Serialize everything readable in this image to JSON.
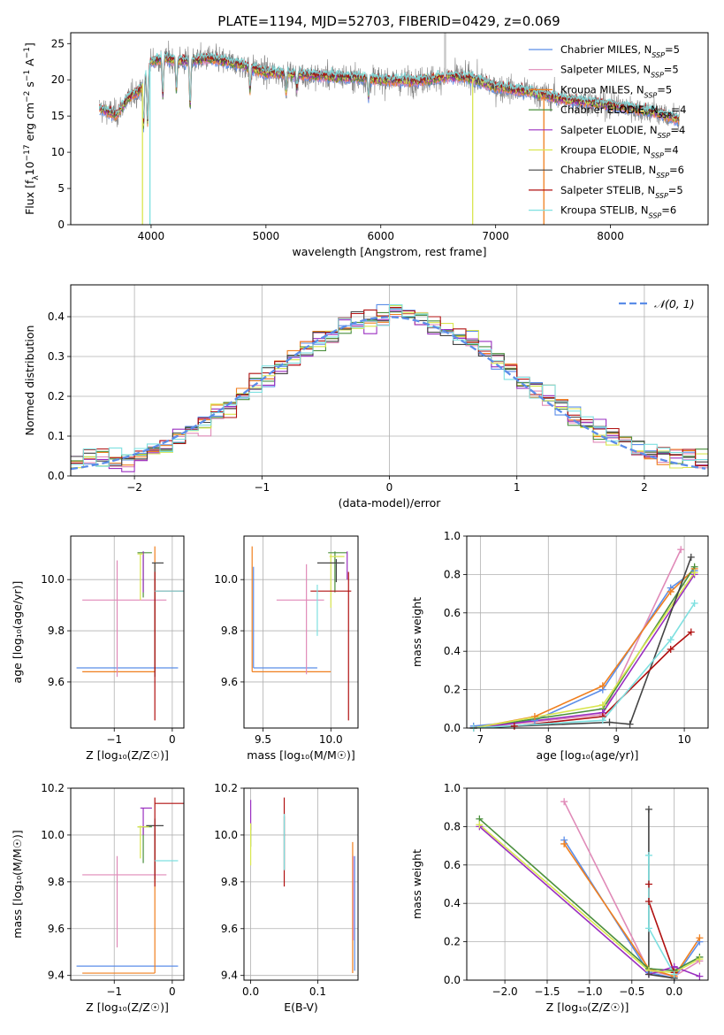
{
  "figure_title": "PLATE=1194, MJD=52703, FIBERID=0429, z=0.069",
  "models": [
    {
      "label": "Chabrier MILES, N",
      "n": "5",
      "color": "#5b8de8"
    },
    {
      "label": "Salpeter MILES, N",
      "n": "5",
      "color": "#e08ab8"
    },
    {
      "label": "Kroupa MILES, N",
      "n": "5",
      "color": "#f07f1e"
    },
    {
      "label": "Chabrier ELODIE, N",
      "n": "4",
      "color": "#4a8f3c"
    },
    {
      "label": "Salpeter ELODIE, N",
      "n": "4",
      "color": "#9a2fc0"
    },
    {
      "label": "Kroupa ELODIE, N",
      "n": "4",
      "color": "#d9e64f"
    },
    {
      "label": "Chabrier STELIB, N",
      "n": "6",
      "color": "#444444"
    },
    {
      "label": "Salpeter STELIB, N",
      "n": "5",
      "color": "#b01010"
    },
    {
      "label": "Kroupa STELIB, N",
      "n": "6",
      "color": "#7ee0e0"
    }
  ],
  "legend_subscript": "SSP",
  "chart_data": [
    {
      "id": "spectrum",
      "type": "line",
      "xlabel": "wavelength [Angstrom, rest frame]",
      "ylabel_parts": [
        "Flux [f",
        "λ",
        "10",
        "−17",
        " erg cm",
        "−2",
        " s",
        "−1",
        " A",
        "−1",
        "]"
      ],
      "xlim": [
        3300,
        8850
      ],
      "ylim": [
        0,
        26.5
      ],
      "xticks": [
        4000,
        5000,
        6000,
        7000,
        8000
      ],
      "yticks": [
        0,
        5,
        10,
        15,
        20,
        25
      ],
      "data_series": {
        "name": "data",
        "color": "#808080"
      },
      "continuum": {
        "x": [
          3550,
          3700,
          3800,
          3900,
          4000,
          4100,
          4300,
          4500,
          4800,
          5000,
          5200,
          5500,
          5800,
          6000,
          6300,
          6600,
          6800,
          7000,
          7300,
          7600,
          8000,
          8400,
          8600
        ],
        "y": [
          16.0,
          15.2,
          17.5,
          18.5,
          22.5,
          23.0,
          22.5,
          23.0,
          22.0,
          21.0,
          20.8,
          20.5,
          20.3,
          20.0,
          19.8,
          20.5,
          20.2,
          19.0,
          18.3,
          17.3,
          16.5,
          15.5,
          14.5
        ]
      },
      "absorption_features": [
        {
          "x": 3934,
          "depth": 6
        },
        {
          "x": 3969,
          "depth": 7
        },
        {
          "x": 4102,
          "depth": 5
        },
        {
          "x": 4220,
          "depth": 4
        },
        {
          "x": 4340,
          "depth": 6
        },
        {
          "x": 4861,
          "depth": 3
        },
        {
          "x": 5175,
          "depth": 2.5
        },
        {
          "x": 5270,
          "depth": 2
        },
        {
          "x": 5893,
          "depth": 2.5
        }
      ],
      "model_spikes": [
        {
          "x": 3925,
          "to": 0,
          "color": "#d9e64f"
        },
        {
          "x": 3990,
          "to": 0,
          "color": "#7ee0e0"
        },
        {
          "x": 6800,
          "to": 0,
          "color": "#d9e64f"
        },
        {
          "x": 7420,
          "to": 0,
          "color": "#f07f1e"
        }
      ],
      "data_spike": {
        "x": 6560,
        "to": 26.5,
        "color": "#c8c8c8"
      }
    },
    {
      "id": "residuals",
      "type": "histogram",
      "xlabel": "(data-model)/error",
      "ylabel": "Normed distribution",
      "xlim": [
        -2.5,
        2.5
      ],
      "ylim": [
        0,
        0.48
      ],
      "xticks": [
        -2,
        -1,
        0,
        1,
        2
      ],
      "xtick_labels": [
        "−2",
        "−1",
        "0",
        "1",
        "2"
      ],
      "yticks": [
        0.0,
        0.1,
        0.2,
        0.3,
        0.4
      ],
      "ytick_labels": [
        "0.0",
        "0.1",
        "0.2",
        "0.3",
        "0.4"
      ],
      "bin_width": 0.1,
      "gaussian_label": "𝒩(0, 1)",
      "gaussian_color": "#5b8de8"
    },
    {
      "id": "age-vs-Z",
      "type": "errorbar",
      "xlabel": "Z [log₁₀(Z/Z☉)]",
      "ylabel": "age  [log₁₀(age/yr)]",
      "xlim": [
        -1.75,
        0.2
      ],
      "ylim": [
        9.42,
        10.17
      ],
      "xticks": [
        -1,
        0
      ],
      "xtick_labels": [
        "−1",
        "0"
      ],
      "yticks": [
        9.6,
        9.8,
        10.0
      ],
      "ytick_labels": [
        "9.6",
        "9.8",
        "10.0"
      ],
      "points": [
        {
          "m": 0,
          "x": -0.3,
          "y": 9.655,
          "xl": -1.65,
          "xh": 0.1,
          "yl": 9.655,
          "yh": 9.655
        },
        {
          "m": 2,
          "x": -0.3,
          "y": 9.64,
          "xl": -1.55,
          "xh": -0.3,
          "yl": 9.64,
          "yh": 10.13
        },
        {
          "m": 1,
          "x": -0.95,
          "y": 9.92,
          "xl": -1.55,
          "xh": -0.1,
          "yl": 9.62,
          "yh": 10.075
        },
        {
          "m": 3,
          "x": -0.5,
          "y": 10.105,
          "xl": -0.6,
          "xh": -0.35,
          "yl": 9.93,
          "yh": 10.11
        },
        {
          "m": 4,
          "x": -0.5,
          "y": 10.11,
          "xl": -0.5,
          "xh": -0.5,
          "yl": 9.95,
          "yh": 10.11
        },
        {
          "m": 5,
          "x": -0.55,
          "y": 10.1,
          "xl": -0.6,
          "xh": -0.5,
          "yl": 9.92,
          "yh": 10.1
        },
        {
          "m": 6,
          "x": -0.3,
          "y": 10.065,
          "xl": -0.35,
          "xh": -0.15,
          "yl": 9.62,
          "yh": 10.065
        },
        {
          "m": 7,
          "x": -0.3,
          "y": 9.955,
          "xl": -0.3,
          "xh": 0.2,
          "yl": 9.45,
          "yh": 10.03
        },
        {
          "m": 8,
          "x": -0.25,
          "y": 9.955,
          "xl": -0.3,
          "xh": 0.2,
          "yl": 9.955,
          "yh": 9.955
        }
      ]
    },
    {
      "id": "age-vs-mass",
      "type": "errorbar",
      "xlabel": "mass [log₁₀(M/M☉)]",
      "ylabel": "",
      "xlim": [
        9.36,
        10.2
      ],
      "ylim": [
        9.42,
        10.17
      ],
      "xticks": [
        9.5,
        10.0
      ],
      "xtick_labels": [
        "9.5",
        "10.0"
      ],
      "yticks": [
        9.6,
        9.8,
        10.0
      ],
      "ytick_labels": [
        "9.6",
        "9.8",
        "10.0"
      ],
      "points": [
        {
          "m": 0,
          "x": 9.43,
          "y": 9.655,
          "xl": 9.43,
          "xh": 9.9,
          "yl": 9.655,
          "yh": 10.05
        },
        {
          "m": 2,
          "x": 9.42,
          "y": 9.64,
          "xl": 9.42,
          "xh": 10.0,
          "yl": 9.64,
          "yh": 10.13
        },
        {
          "m": 1,
          "x": 9.82,
          "y": 9.92,
          "xl": 9.6,
          "xh": 9.95,
          "yl": 9.63,
          "yh": 10.06
        },
        {
          "m": 3,
          "x": 10.03,
          "y": 10.105,
          "xl": 9.98,
          "xh": 10.12,
          "yl": 9.95,
          "yh": 10.11
        },
        {
          "m": 4,
          "x": 10.12,
          "y": 10.1,
          "xl": 10.12,
          "xh": 10.12,
          "yl": 10.0,
          "yh": 10.11
        },
        {
          "m": 5,
          "x": 10.0,
          "y": 10.09,
          "xl": 9.99,
          "xh": 10.1,
          "yl": 9.89,
          "yh": 10.1
        },
        {
          "m": 6,
          "x": 10.04,
          "y": 10.065,
          "xl": 9.9,
          "xh": 10.1,
          "yl": 9.99,
          "yh": 10.08
        },
        {
          "m": 7,
          "x": 10.13,
          "y": 9.955,
          "xl": 9.85,
          "xh": 10.15,
          "yl": 9.45,
          "yh": 10.03
        },
        {
          "m": 8,
          "x": 9.9,
          "y": 9.955,
          "xl": 9.9,
          "xh": 9.9,
          "yl": 9.78,
          "yh": 9.98
        }
      ]
    },
    {
      "id": "weight-vs-age",
      "type": "line",
      "xlabel": "age  [log₁₀(age/yr)]",
      "ylabel": "mass weight",
      "xlim": [
        6.8,
        10.35
      ],
      "ylim": [
        0,
        1.0
      ],
      "xticks": [
        7,
        8,
        9,
        10
      ],
      "xtick_labels": [
        "7",
        "8",
        "9",
        "10"
      ],
      "yticks": [
        0.0,
        0.2,
        0.4,
        0.6,
        0.8,
        1.0
      ],
      "ytick_labels": [
        "0.0",
        "0.2",
        "0.4",
        "0.6",
        "0.8",
        "1.0"
      ],
      "series": [
        {
          "m": 0,
          "x": [
            6.9,
            7.8,
            8.8,
            9.8,
            10.15
          ],
          "y": [
            0.01,
            0.04,
            0.2,
            0.73,
            0.82
          ]
        },
        {
          "m": 1,
          "x": [
            6.9,
            8.8,
            9.95
          ],
          "y": [
            0.0,
            0.07,
            0.93
          ]
        },
        {
          "m": 2,
          "x": [
            6.9,
            7.8,
            8.8,
            9.8,
            10.15
          ],
          "y": [
            0.0,
            0.06,
            0.22,
            0.71,
            0.83
          ]
        },
        {
          "m": 3,
          "x": [
            6.9,
            8.8,
            10.15
          ],
          "y": [
            0.0,
            0.1,
            0.84
          ]
        },
        {
          "m": 4,
          "x": [
            6.9,
            8.8,
            10.15
          ],
          "y": [
            0.0,
            0.08,
            0.8
          ]
        },
        {
          "m": 5,
          "x": [
            6.9,
            8.8,
            10.15
          ],
          "y": [
            0.0,
            0.12,
            0.81
          ]
        },
        {
          "m": 6,
          "x": [
            6.9,
            8.9,
            9.2,
            10.1
          ],
          "y": [
            0.0,
            0.03,
            0.02,
            0.89
          ]
        },
        {
          "m": 7,
          "x": [
            7.5,
            8.8,
            9.8,
            10.1
          ],
          "y": [
            0.01,
            0.06,
            0.41,
            0.5
          ]
        },
        {
          "m": 8,
          "x": [
            6.9,
            8.8,
            9.8,
            10.15
          ],
          "y": [
            0.0,
            0.04,
            0.46,
            0.65
          ]
        }
      ]
    },
    {
      "id": "mass-vs-Z",
      "type": "errorbar",
      "xlabel": "Z [log₁₀(Z/Z☉)]",
      "ylabel": "mass [log₁₀(M/M☉)]",
      "xlim": [
        -1.75,
        0.2
      ],
      "ylim": [
        9.38,
        10.2
      ],
      "xticks": [
        -1,
        0
      ],
      "xtick_labels": [
        "−1",
        "0"
      ],
      "yticks": [
        9.4,
        9.6,
        9.8,
        10.0,
        10.2
      ],
      "ytick_labels": [
        "9.4",
        "9.6",
        "9.8",
        "10.0",
        "10.2"
      ],
      "points": [
        {
          "m": 0,
          "x": -0.3,
          "y": 9.44,
          "xl": -1.65,
          "xh": 0.1,
          "yl": 9.44,
          "yh": 9.44
        },
        {
          "m": 2,
          "x": -0.3,
          "y": 9.41,
          "xl": -1.55,
          "xh": -0.3,
          "yl": 9.41,
          "yh": 10.02
        },
        {
          "m": 1,
          "x": -0.95,
          "y": 9.83,
          "xl": -1.55,
          "xh": -0.1,
          "yl": 9.52,
          "yh": 9.91
        },
        {
          "m": 3,
          "x": -0.5,
          "y": 10.035,
          "xl": -0.6,
          "xh": -0.35,
          "yl": 9.88,
          "yh": 10.04
        },
        {
          "m": 4,
          "x": -0.5,
          "y": 10.115,
          "xl": -0.55,
          "xh": -0.35,
          "yl": 10.0,
          "yh": 10.115
        },
        {
          "m": 5,
          "x": -0.55,
          "y": 10.035,
          "xl": -0.6,
          "xh": -0.4,
          "yl": 9.9,
          "yh": 10.04
        },
        {
          "m": 6,
          "x": -0.3,
          "y": 10.04,
          "xl": -0.45,
          "xh": -0.15,
          "yl": 9.81,
          "yh": 10.07
        },
        {
          "m": 7,
          "x": -0.3,
          "y": 10.135,
          "xl": -0.3,
          "xh": 0.2,
          "yl": 9.78,
          "yh": 10.16
        },
        {
          "m": 8,
          "x": -0.25,
          "y": 9.89,
          "xl": -0.3,
          "xh": 0.1,
          "yl": 9.89,
          "yh": 9.89
        }
      ]
    },
    {
      "id": "mass-vs-ebv",
      "type": "errorbar",
      "xlabel": "E(B-V)",
      "ylabel": "",
      "xlim": [
        -0.01,
        0.16
      ],
      "ylim": [
        9.38,
        10.2
      ],
      "xticks": [
        0.0,
        0.1
      ],
      "xtick_labels": [
        "0.0",
        "0.1"
      ],
      "yticks": [
        9.4,
        9.6,
        9.8,
        10.0,
        10.2
      ],
      "ytick_labels": [
        "9.4",
        "9.6",
        "9.8",
        "10.0",
        "10.2"
      ],
      "points": [
        {
          "m": 0,
          "x": 0.155,
          "y": 9.44,
          "xl": 0.155,
          "xh": 0.155,
          "yl": 9.42,
          "yh": 9.91
        },
        {
          "m": 2,
          "x": 0.152,
          "y": 9.41,
          "xl": 0.152,
          "xh": 0.152,
          "yl": 9.41,
          "yh": 9.97
        },
        {
          "m": 1,
          "x": 0.153,
          "y": 9.83,
          "xl": 0.153,
          "xh": 0.153,
          "yl": 9.55,
          "yh": 9.91
        },
        {
          "m": 3,
          "x": 0.0,
          "y": 10.035,
          "xl": 0.0,
          "xh": 0.0,
          "yl": 9.95,
          "yh": 10.05
        },
        {
          "m": 4,
          "x": 0.0,
          "y": 10.115,
          "xl": 0.0,
          "xh": 0.0,
          "yl": 10.02,
          "yh": 10.15
        },
        {
          "m": 5,
          "x": 0.0,
          "y": 10.035,
          "xl": 0.0,
          "xh": 0.0,
          "yl": 9.87,
          "yh": 10.05
        },
        {
          "m": 6,
          "x": 0.05,
          "y": 10.04,
          "xl": 0.05,
          "xh": 0.05,
          "yl": 9.85,
          "yh": 10.08
        },
        {
          "m": 7,
          "x": 0.05,
          "y": 10.135,
          "xl": 0.05,
          "xh": 0.05,
          "yl": 9.78,
          "yh": 10.16
        },
        {
          "m": 8,
          "x": 0.05,
          "y": 9.89,
          "xl": 0.05,
          "xh": 0.05,
          "yl": 9.85,
          "yh": 10.09
        }
      ]
    },
    {
      "id": "weight-vs-Z",
      "type": "line",
      "xlabel": "Z [log₁₀(Z/Z☉)]",
      "ylabel": "mass weight",
      "xlim": [
        -2.45,
        0.4
      ],
      "ylim": [
        0,
        1.0
      ],
      "xticks": [
        -2.0,
        -1.5,
        -1.0,
        -0.5,
        0.0
      ],
      "xtick_labels": [
        "−2.0",
        "−1.5",
        "−1.0",
        "−0.5",
        "0.0"
      ],
      "yticks": [
        0.0,
        0.2,
        0.4,
        0.6,
        0.8,
        1.0
      ],
      "ytick_labels": [
        "0.0",
        "0.2",
        "0.4",
        "0.6",
        "0.8",
        "1.0"
      ],
      "series": [
        {
          "m": 0,
          "x": [
            -1.3,
            -0.3,
            0.0,
            0.3
          ],
          "y": [
            0.73,
            0.04,
            0.01,
            0.2
          ]
        },
        {
          "m": 1,
          "x": [
            -1.3,
            -0.3,
            0.0,
            0.3
          ],
          "y": [
            0.93,
            0.05,
            0.02,
            0.1
          ]
        },
        {
          "m": 2,
          "x": [
            -1.3,
            -0.3,
            0.0,
            0.3
          ],
          "y": [
            0.71,
            0.06,
            0.02,
            0.22
          ]
        },
        {
          "m": 3,
          "x": [
            -2.3,
            -0.3,
            0.0,
            0.3
          ],
          "y": [
            0.84,
            0.06,
            0.05,
            0.12
          ]
        },
        {
          "m": 4,
          "x": [
            -2.3,
            -0.3,
            0.0,
            0.3
          ],
          "y": [
            0.8,
            0.03,
            0.07,
            0.02
          ]
        },
        {
          "m": 5,
          "x": [
            -2.3,
            -0.3,
            0.0,
            0.3
          ],
          "y": [
            0.81,
            0.05,
            0.04,
            0.11
          ]
        },
        {
          "m": 6,
          "x": [
            -0.3,
            -0.3,
            0.0
          ],
          "y": [
            0.89,
            0.03,
            0.01
          ]
        },
        {
          "m": 7,
          "x": [
            -0.3,
            -0.3,
            0.0
          ],
          "y": [
            0.5,
            0.41,
            0.04
          ]
        },
        {
          "m": 8,
          "x": [
            -0.3,
            -0.3,
            0.0
          ],
          "y": [
            0.65,
            0.27,
            0.03
          ]
        }
      ]
    }
  ]
}
